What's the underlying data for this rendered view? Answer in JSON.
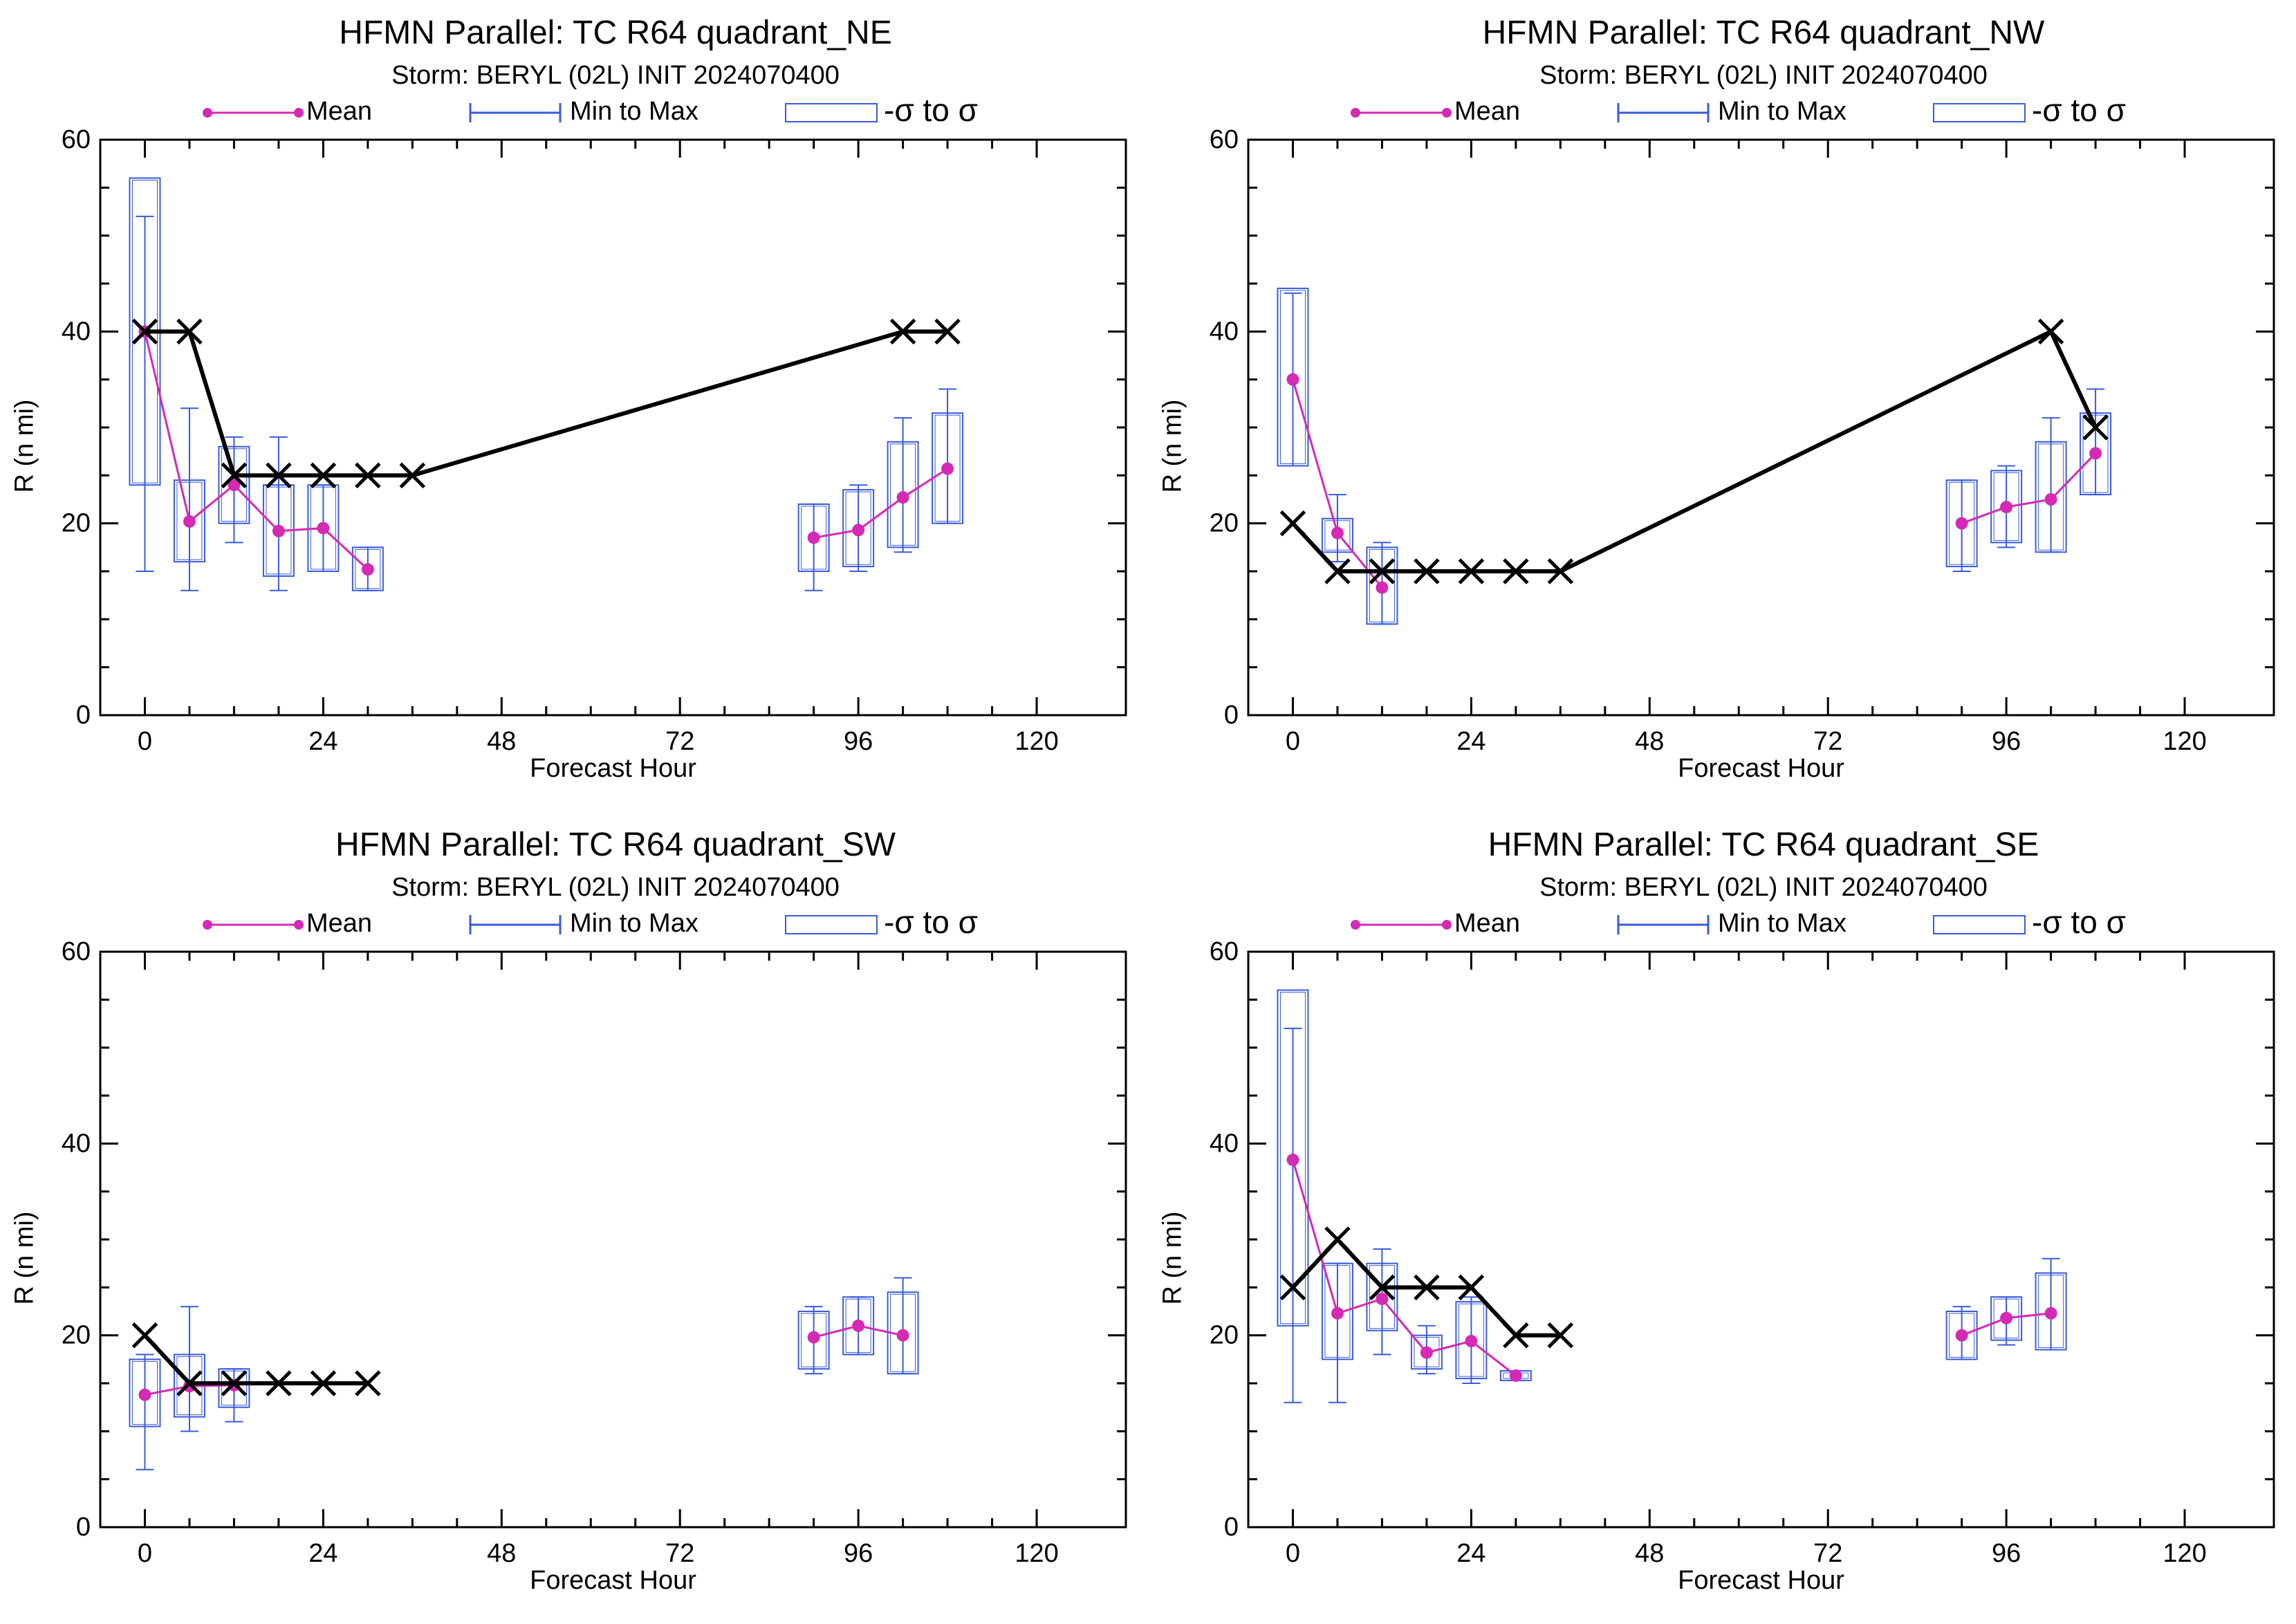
{
  "legend": {
    "mean": "Mean",
    "minmax": "Min to Max",
    "sigma": "-σ to σ"
  },
  "colors": {
    "mean": "#d42ab4",
    "box": "#3a5bd9",
    "best_track": "#000000",
    "axes": "#000000"
  },
  "chart_data": [
    {
      "type": "box",
      "title": "HFMN Parallel: TC  R64 quadrant_NE",
      "subtitle": "Storm: BERYL (02L) INIT 2024070400",
      "xlabel": "Forecast Hour",
      "ylabel": "R (n mi)",
      "xlim": [
        -6,
        132
      ],
      "ylim": [
        0,
        60
      ],
      "xticks": [
        0,
        24,
        48,
        72,
        96,
        120
      ],
      "yticks": [
        0,
        20,
        40,
        60
      ],
      "boxes": [
        {
          "x": 0,
          "mean": 40,
          "min": 15,
          "max": 52,
          "lo": 24,
          "hi": 56
        },
        {
          "x": 6,
          "mean": 20.2,
          "min": 13,
          "max": 32,
          "lo": 16,
          "hi": 24.5
        },
        {
          "x": 12,
          "mean": 24,
          "min": 18,
          "max": 29,
          "lo": 20,
          "hi": 28
        },
        {
          "x": 18,
          "mean": 19.2,
          "min": 13,
          "max": 29,
          "lo": 14.5,
          "hi": 24
        },
        {
          "x": 24,
          "mean": 19.5,
          "min": 15,
          "max": 24,
          "lo": 15,
          "hi": 24
        },
        {
          "x": 30,
          "mean": 15.2,
          "min": 13,
          "max": 17.5,
          "lo": 13,
          "hi": 17.5
        },
        {
          "x": 90,
          "mean": 18.5,
          "min": 13,
          "max": 22,
          "lo": 15,
          "hi": 22
        },
        {
          "x": 96,
          "mean": 19.3,
          "min": 15,
          "max": 24,
          "lo": 15.5,
          "hi": 23.5
        },
        {
          "x": 102,
          "mean": 22.7,
          "min": 17,
          "max": 31,
          "lo": 17.5,
          "hi": 28.5
        },
        {
          "x": 108,
          "mean": 25.7,
          "min": 20,
          "max": 34,
          "lo": 20,
          "hi": 31.5
        }
      ],
      "best_track": [
        [
          0,
          40
        ],
        [
          6,
          40
        ],
        [
          12,
          25
        ],
        [
          18,
          25
        ],
        [
          24,
          25
        ],
        [
          30,
          25
        ],
        [
          36,
          25
        ],
        [
          102,
          40
        ],
        [
          108,
          40
        ]
      ]
    },
    {
      "type": "box",
      "title": "HFMN Parallel: TC  R64 quadrant_NW",
      "subtitle": "Storm: BERYL (02L) INIT 2024070400",
      "xlabel": "Forecast Hour",
      "ylabel": "R (n mi)",
      "xlim": [
        -6,
        132
      ],
      "ylim": [
        0,
        60
      ],
      "xticks": [
        0,
        24,
        48,
        72,
        96,
        120
      ],
      "yticks": [
        0,
        20,
        40,
        60
      ],
      "boxes": [
        {
          "x": 0,
          "mean": 35,
          "min": 26,
          "max": 44,
          "lo": 26,
          "hi": 44.5
        },
        {
          "x": 6,
          "mean": 19,
          "min": 16,
          "max": 23,
          "lo": 17,
          "hi": 20.5
        },
        {
          "x": 12,
          "mean": 13.3,
          "min": 9.5,
          "max": 18,
          "lo": 9.5,
          "hi": 17.5
        },
        {
          "x": 90,
          "mean": 20,
          "min": 15,
          "max": 24.5,
          "lo": 15.5,
          "hi": 24.5
        },
        {
          "x": 96,
          "mean": 21.7,
          "min": 17.5,
          "max": 26,
          "lo": 18,
          "hi": 25.5
        },
        {
          "x": 102,
          "mean": 22.5,
          "min": 17,
          "max": 31,
          "lo": 17,
          "hi": 28.5
        },
        {
          "x": 108,
          "mean": 27.3,
          "min": 23,
          "max": 34,
          "lo": 23,
          "hi": 31.5
        }
      ],
      "best_track": [
        [
          0,
          20
        ],
        [
          6,
          15
        ],
        [
          12,
          15
        ],
        [
          18,
          15
        ],
        [
          24,
          15
        ],
        [
          30,
          15
        ],
        [
          36,
          15
        ],
        [
          102,
          40
        ],
        [
          108,
          30
        ]
      ]
    },
    {
      "type": "box",
      "title": "HFMN Parallel: TC  R64 quadrant_SW",
      "subtitle": "Storm: BERYL (02L) INIT 2024070400",
      "xlabel": "Forecast Hour",
      "ylabel": "R (n mi)",
      "xlim": [
        -6,
        132
      ],
      "ylim": [
        0,
        60
      ],
      "xticks": [
        0,
        24,
        48,
        72,
        96,
        120
      ],
      "yticks": [
        0,
        20,
        40,
        60
      ],
      "boxes": [
        {
          "x": 0,
          "mean": 13.8,
          "min": 6,
          "max": 18,
          "lo": 10.5,
          "hi": 17.5
        },
        {
          "x": 6,
          "mean": 14.7,
          "min": 10,
          "max": 23,
          "lo": 11.5,
          "hi": 18
        },
        {
          "x": 12,
          "mean": 14.8,
          "min": 11,
          "max": 16.5,
          "lo": 12.5,
          "hi": 16.5
        },
        {
          "x": 90,
          "mean": 19.8,
          "min": 16,
          "max": 23,
          "lo": 16.5,
          "hi": 22.5
        },
        {
          "x": 96,
          "mean": 21,
          "min": 18,
          "max": 24,
          "lo": 18,
          "hi": 24
        },
        {
          "x": 102,
          "mean": 20,
          "min": 16,
          "max": 26,
          "lo": 16,
          "hi": 24.5
        }
      ],
      "best_track": [
        [
          0,
          20
        ],
        [
          6,
          15
        ],
        [
          12,
          15
        ],
        [
          18,
          15
        ],
        [
          24,
          15
        ],
        [
          30,
          15
        ]
      ]
    },
    {
      "type": "box",
      "title": "HFMN Parallel: TC  R64 quadrant_SE",
      "subtitle": "Storm: BERYL (02L) INIT 2024070400",
      "xlabel": "Forecast Hour",
      "ylabel": "R (n mi)",
      "xlim": [
        -6,
        132
      ],
      "ylim": [
        0,
        60
      ],
      "xticks": [
        0,
        24,
        48,
        72,
        96,
        120
      ],
      "yticks": [
        0,
        20,
        40,
        60
      ],
      "boxes": [
        {
          "x": 0,
          "mean": 38.3,
          "min": 13,
          "max": 52,
          "lo": 21,
          "hi": 56
        },
        {
          "x": 6,
          "mean": 22.3,
          "min": 13,
          "max": 27.5,
          "lo": 17.5,
          "hi": 27.5
        },
        {
          "x": 12,
          "mean": 23.8,
          "min": 18,
          "max": 29,
          "lo": 20.5,
          "hi": 27.5
        },
        {
          "x": 18,
          "mean": 18.2,
          "min": 16,
          "max": 21,
          "lo": 16.5,
          "hi": 20
        },
        {
          "x": 24,
          "mean": 19.4,
          "min": 15,
          "max": 24,
          "lo": 15.5,
          "hi": 23.5
        },
        {
          "x": 30,
          "mean": 15.8,
          "min": 15.3,
          "max": 16.3,
          "lo": 15.3,
          "hi": 16.3
        },
        {
          "x": 90,
          "mean": 20,
          "min": 17.5,
          "max": 23,
          "lo": 17.5,
          "hi": 22.5
        },
        {
          "x": 96,
          "mean": 21.8,
          "min": 19,
          "max": 24,
          "lo": 19.5,
          "hi": 24
        },
        {
          "x": 102,
          "mean": 22.3,
          "min": 18.5,
          "max": 28,
          "lo": 18.5,
          "hi": 26.5
        }
      ],
      "best_track": [
        [
          0,
          25
        ],
        [
          6,
          30
        ],
        [
          12,
          25
        ],
        [
          18,
          25
        ],
        [
          24,
          25
        ],
        [
          30,
          20
        ],
        [
          36,
          20
        ]
      ]
    }
  ]
}
